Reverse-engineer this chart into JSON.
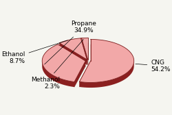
{
  "labels": [
    "CNG",
    "Propane",
    "Ethanol",
    "Methanol"
  ],
  "values": [
    54.2,
    34.9,
    8.7,
    2.3
  ],
  "face_color": "#f2a8a8",
  "edge_color": "#7a1a1a",
  "shadow_color": "#8B2020",
  "explode": [
    0.06,
    0.06,
    0.06,
    0.06
  ],
  "startangle": 90,
  "label_fontsize": 6.5,
  "background_color": "#f5f5f0",
  "depth": 0.12,
  "yscale": 0.5
}
